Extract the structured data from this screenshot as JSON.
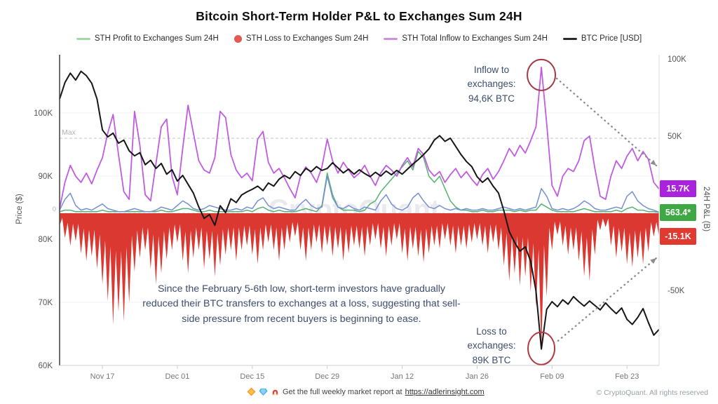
{
  "header": {
    "title": "Bitcoin Short-Term Holder P&L to Exchanges Sum 24H"
  },
  "legend": [
    {
      "label": "STH Profit to Exchanges Sum 24H",
      "swatch": "line",
      "color": "#a3d9a8"
    },
    {
      "label": "STH Loss to Exchanges Sum 24H",
      "swatch": "dot",
      "color": "#e25a50"
    },
    {
      "label": "STH Total Inflow to Exchanges Sum 24H",
      "swatch": "line",
      "color": "#cf8fe2"
    },
    {
      "label": "BTC Price [USD]",
      "swatch": "line",
      "color": "#2a2a2a"
    }
  ],
  "annotations": {
    "inflow": {
      "text": "Inflow to\nexchanges:\n94,6K BTC",
      "target": {
        "day": 90,
        "value": 94.6
      }
    },
    "loss": {
      "text": "Loss to\nexchanges:\n89K BTC",
      "target": {
        "day": 90,
        "value": -89
      }
    },
    "note": "Since the February 5-6th low, short-term investors have gradually reduced their BTC transfers to exchanges at a loss, suggesting that sell-side pressure from recent buyers is beginning to ease."
  },
  "badges": [
    {
      "label": "15.7K",
      "value": 15.7,
      "color": "#aa22dd"
    },
    {
      "label": "563.4*",
      "value": 0.56,
      "color": "#3ea844"
    },
    {
      "label": "-15.1K",
      "value": -15.1,
      "color": "#e13a31"
    }
  ],
  "watermark": "CryptoQuant",
  "footer": {
    "icons": [
      "orange-diamond",
      "blue-gem",
      "magnet"
    ],
    "text": "Get the full weekly market report at",
    "link": "https://adlerinsight.com",
    "copyright": "© CryptoQuant. All rights reserved"
  },
  "chart_data": {
    "type": "line",
    "title": "Bitcoin Short-Term Holder P&L to Exchanges Sum 24H",
    "x_unit": "days (index 0 = chart left edge ≈ Nov 09)",
    "x_range": [
      0,
      112
    ],
    "x_ticks": [
      {
        "d": 8,
        "label": "Nov 17"
      },
      {
        "d": 22,
        "label": "Dec 01"
      },
      {
        "d": 36,
        "label": "Dec 15"
      },
      {
        "d": 50,
        "label": "Dec 29"
      },
      {
        "d": 64,
        "label": "Jan 12"
      },
      {
        "d": 78,
        "label": "Jan 26"
      },
      {
        "d": 92,
        "label": "Feb 09"
      },
      {
        "d": 106,
        "label": "Feb 23"
      }
    ],
    "left_axis": {
      "label": "Price ($)",
      "unit": "USD thousands",
      "range": [
        60,
        109
      ],
      "ticks": [
        {
          "v": 100,
          "label": "100K"
        },
        {
          "v": 90,
          "label": "90K"
        },
        {
          "v": 80,
          "label": "80K"
        },
        {
          "v": 70,
          "label": "70K"
        },
        {
          "v": 60,
          "label": "60K"
        }
      ]
    },
    "right_axis": {
      "label": "24H P&L (B)",
      "unit": "K BTC",
      "range": [
        -98,
        103
      ],
      "ticks": [
        {
          "v": 100,
          "label": "100K"
        },
        {
          "v": 50,
          "label": "50K"
        },
        {
          "v": -50,
          "label": "-50K"
        }
      ]
    },
    "max_line": {
      "value": 48.6,
      "label": "Max"
    },
    "zero_line": {
      "value": 0,
      "label": "0"
    },
    "grid": "faint horizontal at price ticks",
    "series": [
      {
        "name": "STH Loss to Exchanges Sum 24H",
        "axis": "right",
        "style": "area",
        "color": "#dc3832",
        "values": [
          -8,
          -16,
          -21,
          -18,
          -26,
          -31,
          -28,
          -36,
          -46,
          -57,
          -72,
          -64,
          -70,
          -58,
          -38,
          -29,
          -24,
          -36,
          -46,
          -39,
          -30,
          -24,
          -19,
          -31,
          -39,
          -29,
          -24,
          -36,
          -30,
          -41,
          -34,
          -27,
          -24,
          -31,
          -24,
          -21,
          -27,
          -33,
          -24,
          -19,
          -24,
          -31,
          -24,
          -19,
          -15,
          -24,
          -31,
          -24,
          -19,
          -26,
          -21,
          -28,
          -23,
          -31,
          -26,
          -21,
          -23,
          -28,
          -21,
          -17,
          -23,
          -28,
          -21,
          -17,
          -26,
          -31,
          -23,
          -28,
          -32,
          -26,
          -21,
          -23,
          -17,
          -21,
          -26,
          -21,
          -23,
          -19,
          -17,
          -21,
          -26,
          -19,
          -24,
          -34,
          -44,
          -39,
          -47,
          -41,
          -51,
          -61,
          -89,
          -54,
          -24,
          -14,
          -21,
          -27,
          -24,
          -31,
          -41,
          -44,
          -27,
          -11,
          -9,
          -21,
          -29,
          -25,
          -33,
          -35,
          -29,
          -33,
          -25,
          -15.1,
          -15
        ]
      },
      {
        "name": "STH Profit to Exchanges Sum 24H (green trace)",
        "axis": "right",
        "style": "line",
        "color": "#57b271",
        "values": [
          1,
          2,
          2,
          1,
          1,
          1,
          1,
          1,
          2,
          1,
          1,
          1,
          1,
          1,
          1,
          1,
          1,
          1,
          1,
          2,
          1,
          1,
          2,
          3,
          3,
          2,
          1,
          1,
          2,
          1,
          1,
          1,
          1,
          1,
          1,
          2,
          1,
          3,
          4,
          2,
          1,
          2,
          1,
          1,
          1,
          2,
          3,
          2,
          1,
          5,
          26,
          12,
          4,
          2,
          2,
          2,
          1,
          2,
          6,
          8,
          14,
          18,
          22,
          26,
          30,
          34,
          28,
          40,
          36,
          24,
          20,
          24,
          16,
          8,
          4,
          2,
          2,
          1,
          1,
          2,
          1,
          1,
          2,
          2,
          2,
          1,
          2,
          1,
          2,
          2,
          6,
          4,
          2,
          1,
          1,
          1,
          1,
          2,
          3,
          2,
          1,
          1,
          1,
          1,
          2,
          1,
          3,
          4,
          2,
          2,
          1,
          1,
          0.5
        ]
      },
      {
        "name": "STH Profit to Exchanges Sum 24H",
        "axis": "right",
        "style": "line",
        "color": "#7590d2",
        "values": [
          2,
          9,
          13,
          5,
          2,
          3,
          2,
          4,
          6,
          3,
          2,
          1,
          1,
          2,
          3,
          2,
          1,
          1,
          2,
          4,
          3,
          2,
          5,
          8,
          6,
          3,
          2,
          3,
          5,
          4,
          3,
          2,
          2,
          3,
          2,
          4,
          3,
          8,
          10,
          5,
          3,
          4,
          3,
          2,
          2,
          6,
          9,
          5,
          3,
          4,
          24,
          10,
          4,
          3,
          5,
          3,
          2,
          4,
          3,
          2,
          8,
          12,
          6,
          3,
          2,
          4,
          10,
          13,
          8,
          4,
          3,
          5,
          3,
          2,
          3,
          2,
          3,
          2,
          2,
          3,
          2,
          2,
          3,
          4,
          3,
          2,
          3,
          2,
          3,
          4,
          16,
          11,
          3,
          2,
          3,
          2,
          3,
          5,
          8,
          6,
          3,
          2,
          2,
          3,
          4,
          3,
          11,
          14,
          8,
          5,
          3,
          2,
          0.6
        ]
      },
      {
        "name": "STH Total Inflow to Exchanges Sum 24H",
        "axis": "right",
        "style": "line",
        "color": "#c05ce0",
        "values": [
          3,
          20,
          31,
          24,
          20,
          26,
          19,
          28,
          36,
          52,
          64,
          38,
          14,
          9,
          66,
          44,
          12,
          8,
          32,
          56,
          61,
          24,
          12,
          42,
          70,
          52,
          34,
          28,
          26,
          36,
          66,
          62,
          38,
          28,
          23,
          26,
          21,
          48,
          53,
          33,
          26,
          29,
          23,
          16,
          10,
          24,
          30,
          26,
          20,
          30,
          48,
          34,
          26,
          33,
          28,
          23,
          26,
          31,
          24,
          18,
          26,
          31,
          28,
          24,
          31,
          36,
          30,
          42,
          38,
          28,
          24,
          27,
          20,
          25,
          29,
          23,
          27,
          22,
          18,
          25,
          29,
          22,
          27,
          34,
          42,
          37,
          44,
          39,
          47,
          56,
          94.6,
          58,
          18,
          11,
          24,
          29,
          27,
          34,
          47,
          50,
          29,
          11,
          9,
          24,
          34,
          29,
          37,
          42,
          34,
          40,
          35,
          20,
          15.7
        ]
      },
      {
        "name": "BTC Price [USD]",
        "axis": "left",
        "style": "line",
        "color": "#161616",
        "values": [
          102.2,
          104.8,
          106.3,
          105.2,
          106.6,
          105.9,
          104.7,
          102.2,
          97.3,
          96.2,
          96.8,
          95.2,
          95.7,
          94.0,
          93.2,
          93.7,
          91.8,
          92.5,
          91.2,
          92.0,
          90.3,
          91.0,
          89.2,
          90.1,
          88.7,
          87.3,
          85.1,
          83.3,
          83.9,
          82.2,
          85.3,
          84.2,
          86.4,
          85.8,
          87.0,
          87.5,
          87.9,
          88.4,
          87.7,
          88.9,
          88.4,
          89.5,
          90.1,
          89.6,
          90.7,
          90.1,
          91.2,
          90.7,
          91.5,
          90.9,
          91.2,
          92.1,
          91.3,
          90.5,
          91.1,
          90.3,
          91.0,
          90.4,
          89.9,
          90.6,
          90.0,
          90.8,
          90.2,
          90.9,
          90.3,
          91.1,
          91.9,
          92.6,
          93.4,
          94.3,
          95.7,
          96.4,
          95.5,
          96.0,
          94.7,
          93.4,
          92.3,
          91.5,
          89.9,
          89.0,
          89.7,
          88.4,
          87.3,
          84.5,
          81.2,
          79.5,
          78.1,
          78.8,
          76.5,
          71.8,
          62.6,
          68.9,
          70.1,
          69.3,
          70.4,
          69.7,
          70.9,
          70.1,
          69.4,
          70.2,
          69.5,
          68.8,
          69.9,
          69.0,
          68.2,
          69.1,
          67.3,
          66.5,
          67.6,
          69.0,
          66.8,
          64.8,
          65.7
        ]
      }
    ]
  }
}
